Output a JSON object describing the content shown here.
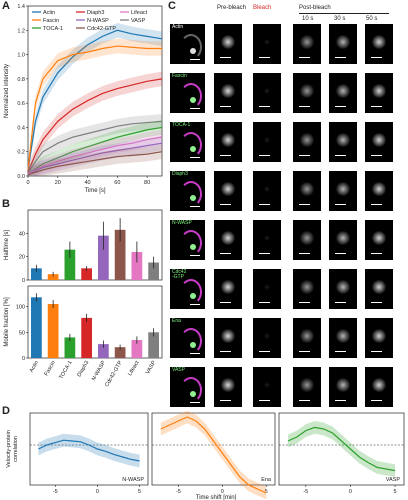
{
  "panels": {
    "A": "A",
    "B": "B",
    "C": "C",
    "D": "D"
  },
  "colors": {
    "Actin": "#1f77b4",
    "Fascin": "#ff7f0e",
    "TOCA-1": "#2ca02c",
    "Diaph3": "#d62728",
    "N-WASP": "#9467bd",
    "Cdc42-GTP": "#8c564b",
    "Lifeact": "#e377c2",
    "VASP": "#7f7f7f"
  },
  "panel_a": {
    "legend": [
      "Actin",
      "Diaph3",
      "Lifeact",
      "Fascin",
      "N-WASP",
      "VASP",
      "TOCA-1",
      "Cdc42-GTP"
    ],
    "ylabel": "Normalized intensity",
    "xlabel": "Time [s]",
    "yticks": [
      "0.0",
      "0.2",
      "0.4",
      "0.6",
      "0.8",
      "1.0",
      "1.2",
      "1.4"
    ],
    "xticks": [
      "0",
      "20",
      "40",
      "60",
      "80"
    ]
  },
  "chart_data": [
    {
      "type": "line",
      "title": "",
      "xlabel": "Time [s]",
      "ylabel": "Normalized intensity",
      "xlim": [
        0,
        90
      ],
      "ylim": [
        0,
        1.4
      ],
      "series": [
        {
          "name": "Actin",
          "x": [
            0,
            5,
            10,
            20,
            30,
            40,
            50,
            60,
            70,
            80,
            90
          ],
          "values": [
            0.05,
            0.45,
            0.65,
            0.85,
            0.98,
            1.08,
            1.15,
            1.2,
            1.17,
            1.15,
            1.13
          ]
        },
        {
          "name": "Fascin",
          "x": [
            0,
            5,
            10,
            20,
            30,
            40,
            50,
            60,
            70,
            80,
            90
          ],
          "values": [
            0.05,
            0.6,
            0.8,
            0.95,
            1.0,
            1.02,
            1.05,
            1.07,
            1.06,
            1.05,
            1.05
          ]
        },
        {
          "name": "Diaph3",
          "x": [
            0,
            5,
            10,
            20,
            30,
            40,
            50,
            60,
            70,
            80,
            90
          ],
          "values": [
            0.03,
            0.18,
            0.3,
            0.45,
            0.55,
            0.62,
            0.68,
            0.72,
            0.75,
            0.78,
            0.8
          ]
        },
        {
          "name": "VASP",
          "x": [
            0,
            5,
            10,
            20,
            30,
            40,
            50,
            60,
            70,
            80,
            90
          ],
          "values": [
            0.02,
            0.12,
            0.2,
            0.27,
            0.32,
            0.35,
            0.38,
            0.41,
            0.43,
            0.44,
            0.45
          ]
        },
        {
          "name": "TOCA-1",
          "x": [
            0,
            5,
            10,
            20,
            30,
            40,
            50,
            60,
            70,
            80,
            90
          ],
          "values": [
            0.02,
            0.06,
            0.1,
            0.15,
            0.2,
            0.24,
            0.28,
            0.32,
            0.35,
            0.38,
            0.4
          ]
        },
        {
          "name": "Lifeact",
          "x": [
            0,
            5,
            10,
            20,
            30,
            40,
            50,
            60,
            70,
            80,
            90
          ],
          "values": [
            0.02,
            0.05,
            0.08,
            0.12,
            0.16,
            0.19,
            0.22,
            0.25,
            0.27,
            0.3,
            0.32
          ]
        },
        {
          "name": "N-WASP",
          "x": [
            0,
            5,
            10,
            20,
            30,
            40,
            50,
            60,
            70,
            80,
            90
          ],
          "values": [
            0.01,
            0.04,
            0.07,
            0.1,
            0.13,
            0.16,
            0.19,
            0.21,
            0.23,
            0.25,
            0.27
          ]
        },
        {
          "name": "Cdc42-GTP",
          "x": [
            0,
            5,
            10,
            20,
            30,
            40,
            50,
            60,
            70,
            80,
            90
          ],
          "values": [
            0.01,
            0.03,
            0.05,
            0.08,
            0.1,
            0.12,
            0.14,
            0.16,
            0.17,
            0.18,
            0.2
          ]
        }
      ]
    },
    {
      "type": "bar",
      "ylabel": "Halftime [s]",
      "categories": [
        "Actin",
        "Fascin",
        "TOCA-1",
        "Diaph3",
        "N-WASP",
        "Cdc42-GTP",
        "Lifeact",
        "VASP"
      ],
      "values": [
        10,
        5,
        26,
        10,
        38,
        43,
        24,
        15
      ],
      "errors": [
        3,
        2,
        7,
        2,
        12,
        10,
        9,
        5
      ],
      "ylim": [
        0,
        60
      ],
      "yticks": [
        "0",
        "20",
        "40"
      ]
    },
    {
      "type": "bar",
      "ylabel": "Mobile fraction [%]",
      "categories": [
        "Actin",
        "Fascin",
        "TOCA-1",
        "Diaph3",
        "N-WASP",
        "Cdc42-GTP",
        "Lifeact",
        "VASP"
      ],
      "values": [
        118,
        105,
        40,
        78,
        27,
        21,
        35,
        50
      ],
      "errors": [
        8,
        8,
        7,
        8,
        7,
        5,
        7,
        8
      ],
      "ylim": [
        0,
        140
      ],
      "yticks": [
        "0",
        "50",
        "100"
      ]
    },
    {
      "type": "line",
      "xlabel": "Time shift [min]",
      "ylabel": "Velocity-protein correlation",
      "panels": [
        {
          "name": "N-WASP",
          "x": [
            -7,
            -6,
            -5,
            -4,
            -3,
            -2,
            -1,
            0,
            1,
            2,
            3,
            4,
            5
          ],
          "values": [
            -0.05,
            0.0,
            0.03,
            0.06,
            0.05,
            0.04,
            0.0,
            -0.05,
            -0.08,
            -0.12,
            -0.15,
            -0.18,
            -0.2
          ]
        },
        {
          "name": "Ena",
          "x": [
            -7,
            -6,
            -5,
            -4,
            -3,
            -2,
            -1,
            0,
            1,
            2,
            3,
            4,
            5
          ],
          "values": [
            0.2,
            0.25,
            0.3,
            0.35,
            0.3,
            0.2,
            0.05,
            -0.1,
            -0.25,
            -0.4,
            -0.5,
            -0.55,
            -0.6
          ]
        },
        {
          "name": "VASP",
          "x": [
            -7,
            -6,
            -5,
            -4,
            -3,
            -2,
            -1,
            0,
            1,
            2,
            3,
            4,
            5
          ],
          "values": [
            0.05,
            0.1,
            0.18,
            0.22,
            0.2,
            0.15,
            0.05,
            -0.05,
            -0.15,
            -0.22,
            -0.28,
            -0.3,
            -0.32
          ]
        }
      ],
      "xticks": [
        "-5",
        "0",
        "5"
      ]
    }
  ],
  "panel_c": {
    "headers": {
      "prebleach": "Pre-bleach",
      "bleach": "Bleach",
      "postbleach": "Post-bleach",
      "t10": "10 s",
      "t30": "30 s",
      "t50": "50 s"
    },
    "rows": [
      "Actin",
      "Fascin",
      "TOCA-1",
      "Diaph3",
      "N-WASP",
      "Cdc42\n-GTP",
      "Ena",
      "VASP"
    ]
  },
  "panel_d": {
    "ylabel": "Velocity-protein\ncorrelation",
    "xlabel": "Time shift [min]",
    "labels": [
      "N-WASP",
      "Ena",
      "VASP"
    ],
    "xticks": [
      "-5",
      "0",
      "5"
    ]
  }
}
